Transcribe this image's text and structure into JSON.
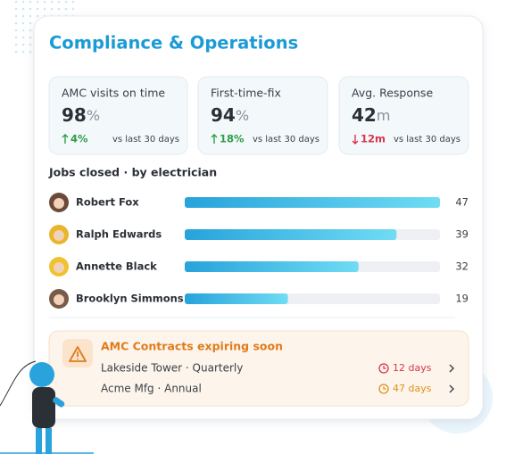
{
  "header": {
    "title": "Compliance & Operations"
  },
  "stats": [
    {
      "label": "AMC visits on time",
      "value": 98,
      "unit": "%",
      "change": "4%",
      "direction": "up",
      "comparison": "vs last 30 days"
    },
    {
      "label": "First-time-fix",
      "value": 94,
      "unit": "%",
      "change": "18%",
      "direction": "up",
      "comparison": "vs last 30 days"
    },
    {
      "label": "Avg. Response",
      "value": 42,
      "unit": "m",
      "change": "12m",
      "direction": "down",
      "comparison": "vs last 30 days"
    }
  ],
  "jobs": {
    "title": "Jobs closed · by electrician",
    "rows": [
      {
        "name": "Robert Fox",
        "value": 47
      },
      {
        "name": "Ralph Edwards",
        "value": 39
      },
      {
        "name": "Annette Black",
        "value": 32
      },
      {
        "name": "Brooklyn Simmons",
        "value": 19
      }
    ]
  },
  "alerts": {
    "title": "AMC Contracts expiring soon",
    "items": [
      {
        "label": "Lakeside Tower · Quarterly",
        "due": "12 days",
        "severity": "high"
      },
      {
        "label": "Acme Mfg · Annual",
        "due": "47 days",
        "severity": "medium"
      }
    ]
  }
}
